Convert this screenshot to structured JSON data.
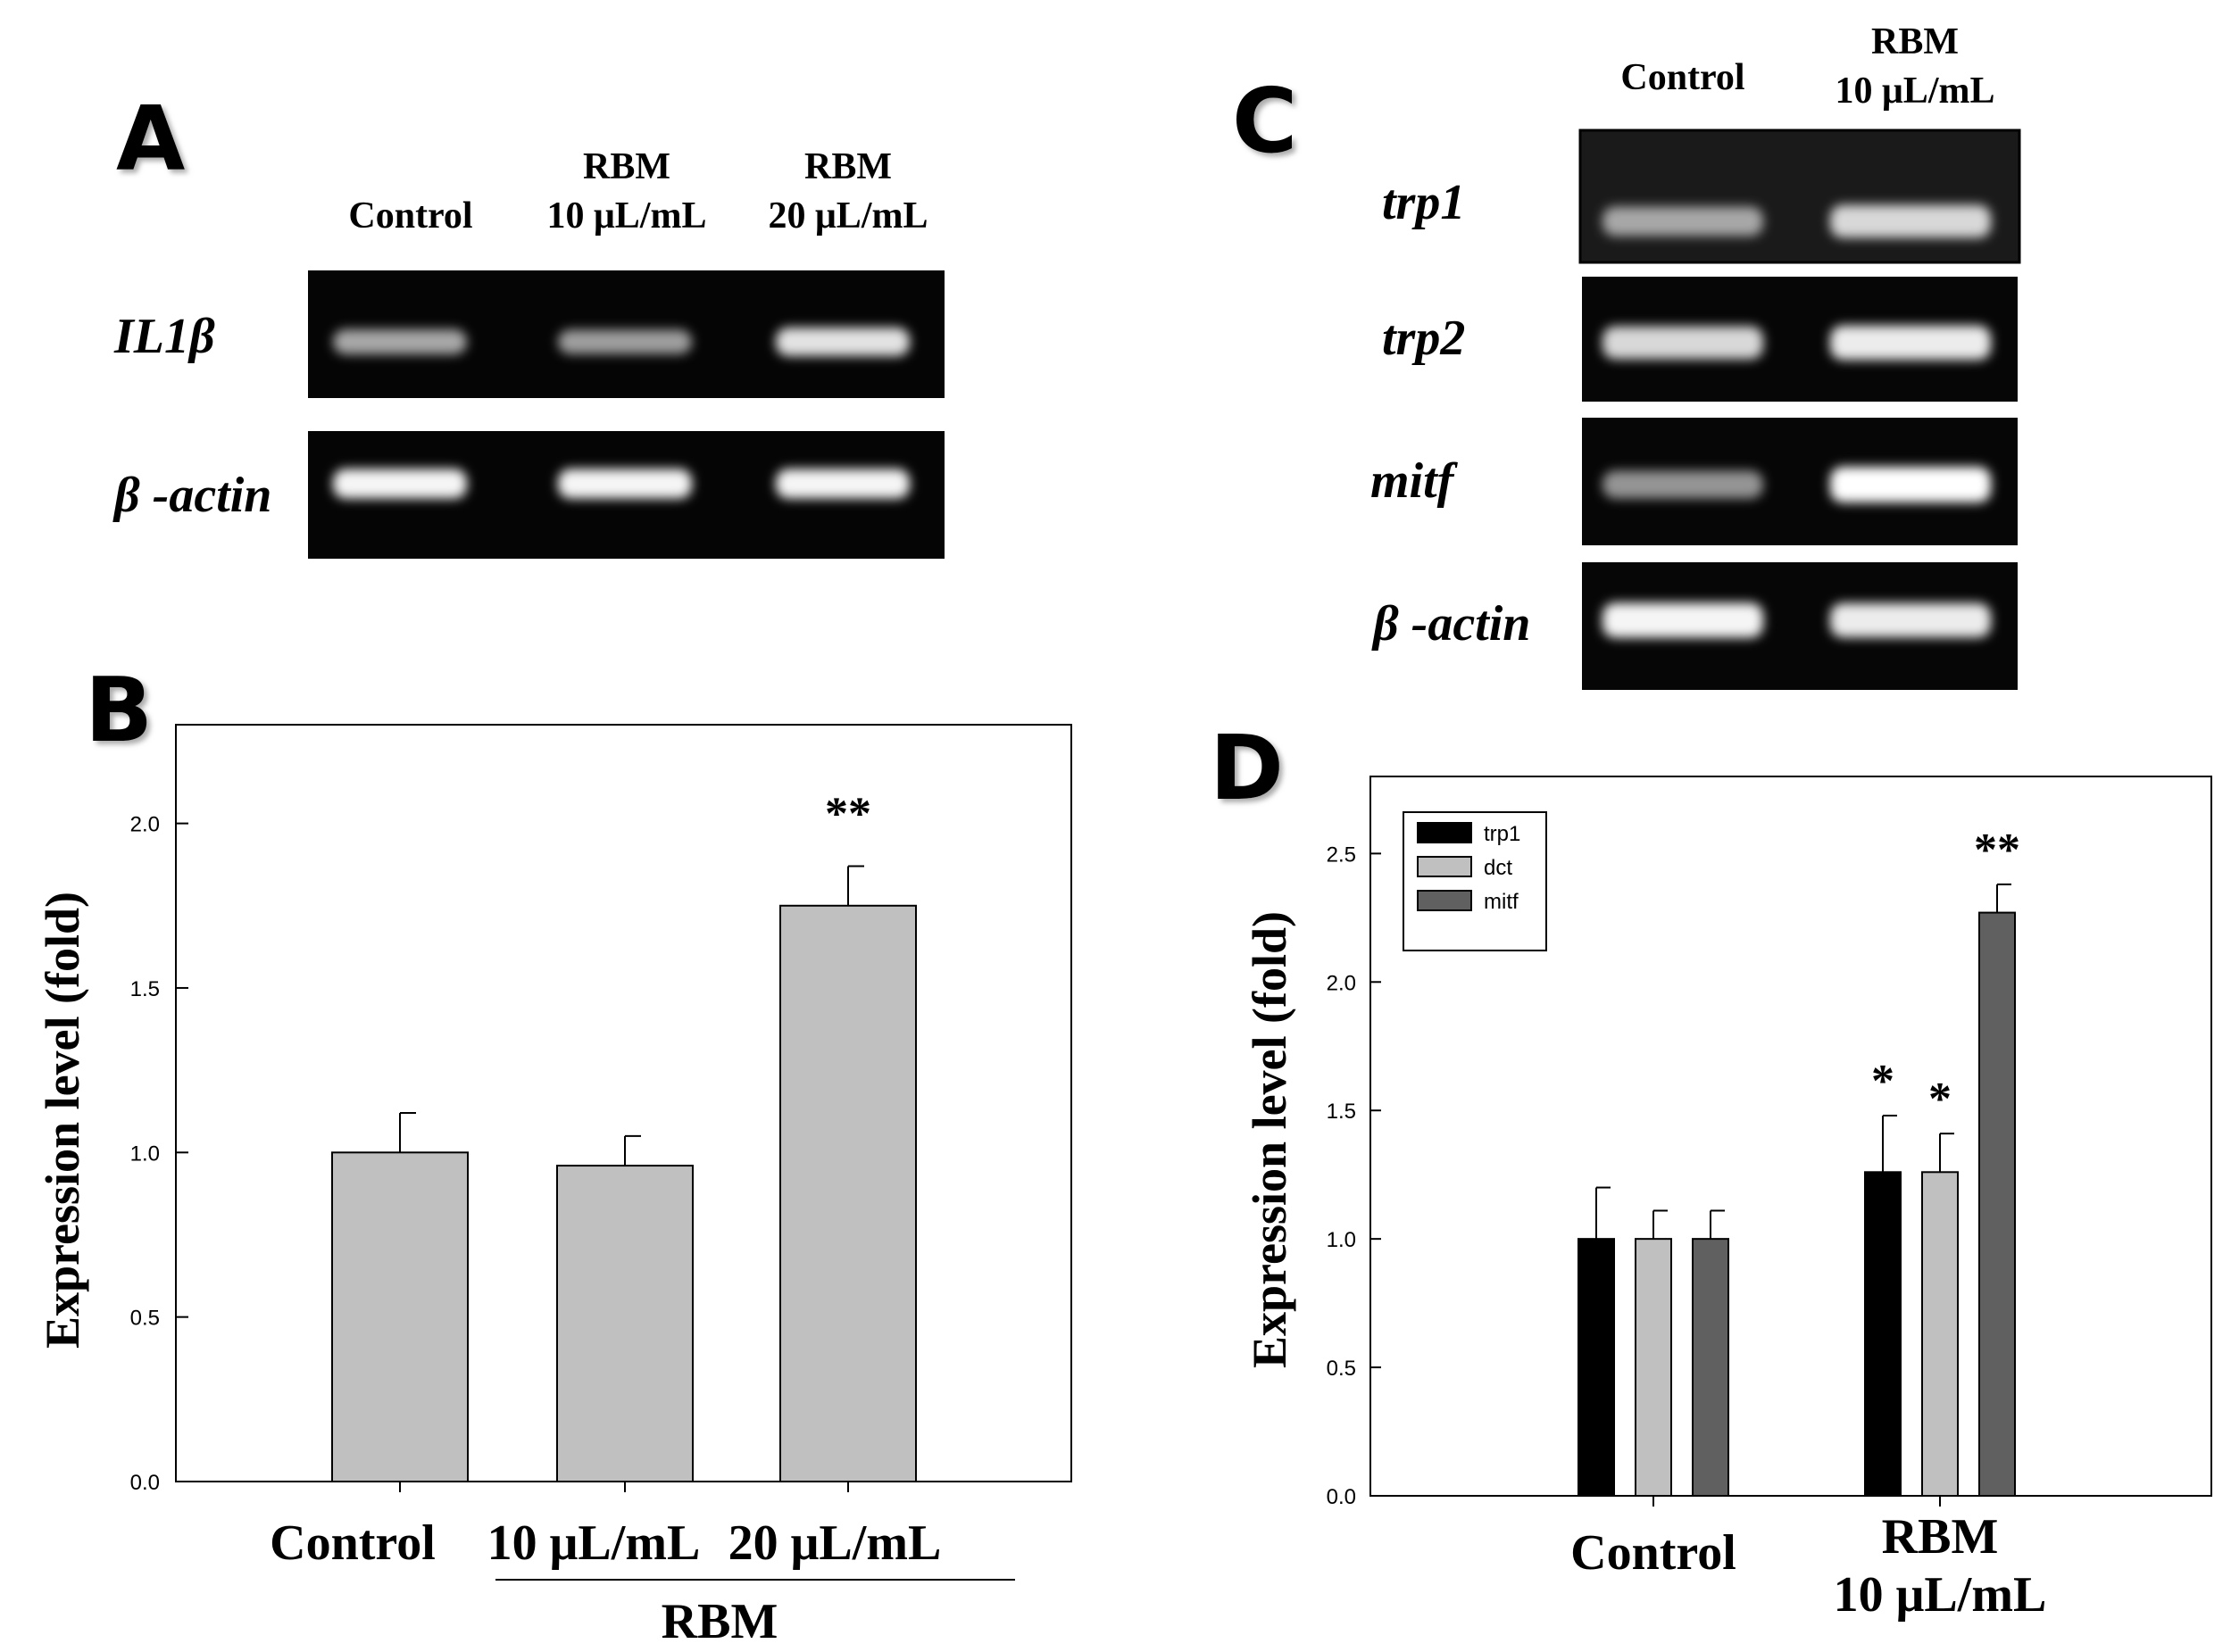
{
  "panels": {
    "A": "A",
    "B": "B",
    "C": "C",
    "D": "D"
  },
  "gel_a": {
    "lanes": [
      {
        "line1": "",
        "line2": "Control"
      },
      {
        "line1": "RBM",
        "line2": "10 μL/mL"
      },
      {
        "line1": "RBM",
        "line2": "20 μL/mL"
      }
    ],
    "rows": [
      {
        "gene": "IL1β",
        "bands": [
          0.55,
          0.5,
          0.85
        ]
      },
      {
        "gene": "β -actin",
        "bands": [
          0.95,
          0.95,
          0.95
        ]
      }
    ]
  },
  "gel_c": {
    "lanes": [
      {
        "line1": "",
        "line2": "Control"
      },
      {
        "line1": "RBM",
        "line2": "10 μL/mL"
      }
    ],
    "rows": [
      {
        "gene": "trp1",
        "bands": [
          0.55,
          0.8
        ]
      },
      {
        "gene": "trp2",
        "bands": [
          0.8,
          0.9
        ]
      },
      {
        "gene": "mitf",
        "bands": [
          0.45,
          1.0
        ]
      },
      {
        "gene": "β -actin",
        "bands": [
          0.95,
          0.9
        ]
      }
    ]
  },
  "chart_data": [
    {
      "type": "bar",
      "panel": "B",
      "ylabel": "Expression level (fold)",
      "ylim": [
        0,
        2.3
      ],
      "yticks": [
        0.0,
        0.5,
        1.0,
        1.5,
        2.0
      ],
      "ytick_labels": [
        "0.0",
        "0.5",
        "1.0",
        "1.5",
        "2.0"
      ],
      "categories": [
        "Control",
        "10 μL/mL",
        "20 μL/mL"
      ],
      "group_label": "RBM",
      "values": [
        1.0,
        0.96,
        1.75
      ],
      "errors": [
        0.12,
        0.09,
        0.12
      ],
      "significance": [
        "",
        "",
        "**"
      ],
      "color": "#c0c0c0"
    },
    {
      "type": "bar",
      "panel": "D",
      "ylabel": "Expression level (fold)",
      "ylim": [
        0,
        2.8
      ],
      "yticks": [
        0.0,
        0.5,
        1.0,
        1.5,
        2.0,
        2.5
      ],
      "ytick_labels": [
        "0.0",
        "0.5",
        "1.0",
        "1.5",
        "2.0",
        "2.5"
      ],
      "categories": [
        {
          "line1": "Control",
          "line2": ""
        },
        {
          "line1": "RBM",
          "line2": "10 μL/mL"
        }
      ],
      "legend_position": "top-left",
      "series": [
        {
          "name": "trp1",
          "color": "#000000",
          "values": [
            1.0,
            1.26
          ],
          "errors": [
            0.2,
            0.22
          ],
          "significance": [
            "",
            "*"
          ]
        },
        {
          "name": "dct",
          "color": "#c0c0c0",
          "values": [
            1.0,
            1.26
          ],
          "errors": [
            0.11,
            0.15
          ],
          "significance": [
            "",
            "*"
          ]
        },
        {
          "name": "mitf",
          "color": "#606060",
          "values": [
            1.0,
            2.27
          ],
          "errors": [
            0.11,
            0.11
          ],
          "significance": [
            "",
            "**"
          ]
        }
      ]
    }
  ]
}
